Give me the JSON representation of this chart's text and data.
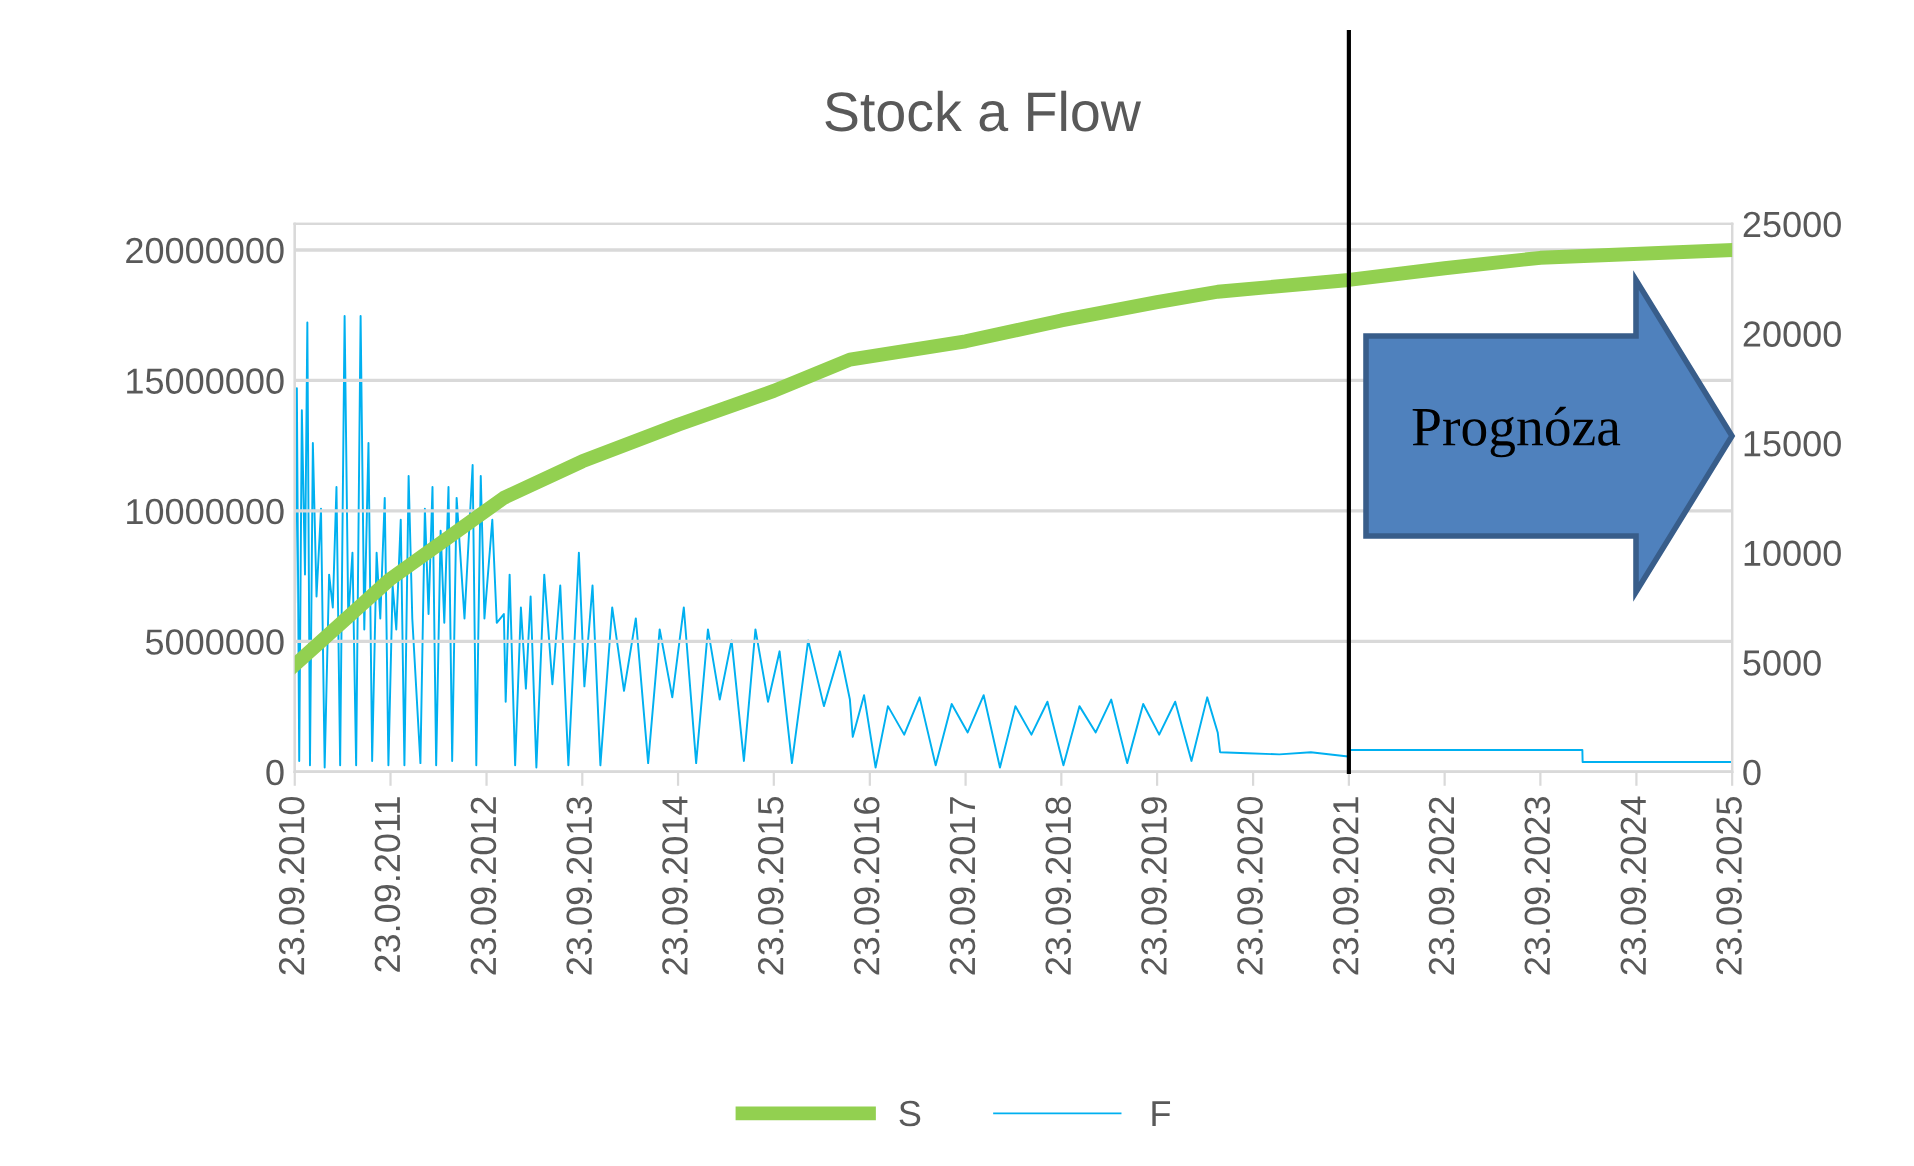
{
  "chart_data": {
    "type": "line",
    "title": "Stock a Flow",
    "annotations": [
      "Prognóza"
    ],
    "xlim": [
      "2010-09-23",
      "2025-09-23"
    ],
    "xticks": [
      {
        "value": "2010-09-23",
        "label": "23.09.2010"
      },
      {
        "value": "2011-09-23",
        "label": "23.09.2011"
      },
      {
        "value": "2012-09-23",
        "label": "23.09.2012"
      },
      {
        "value": "2013-09-23",
        "label": "23.09.2013"
      },
      {
        "value": "2014-09-23",
        "label": "23.09.2014"
      },
      {
        "value": "2015-09-23",
        "label": "23.09.2015"
      },
      {
        "value": "2016-09-23",
        "label": "23.09.2016"
      },
      {
        "value": "2017-09-23",
        "label": "23.09.2017"
      },
      {
        "value": "2018-09-23",
        "label": "23.09.2018"
      },
      {
        "value": "2019-09-23",
        "label": "23.09.2019"
      },
      {
        "value": "2020-09-23",
        "label": "23.09.2020"
      },
      {
        "value": "2021-09-23",
        "label": "23.09.2021"
      },
      {
        "value": "2022-09-23",
        "label": "23.09.2022"
      },
      {
        "value": "2023-09-23",
        "label": "23.09.2023"
      },
      {
        "value": "2024-09-23",
        "label": "23.09.2024"
      },
      {
        "value": "2025-09-23",
        "label": "23.09.2025"
      }
    ],
    "ylim": [
      0,
      21000000
    ],
    "yticks": [
      0,
      5000000,
      10000000,
      15000000,
      20000000
    ],
    "y2lim": [
      0,
      25000
    ],
    "y2ticks": [
      0,
      5000,
      10000,
      15000,
      20000,
      25000
    ],
    "grid": "y",
    "legend": "bottom",
    "marker": "none",
    "ref_lines": [
      {
        "axis": "x",
        "value": "2021-09-23",
        "color": "#000000"
      }
    ],
    "series": [
      {
        "name": "S",
        "color": "#92d050",
        "x": [
          "2010-09-23",
          "2011-09-23",
          "2012-11-28",
          "2013-09-23",
          "2014-09-23",
          "2015-09-23",
          "2016-07-09",
          "2017-09-23",
          "2018-09-23",
          "2019-09-23",
          "2020-05-11",
          "2021-09-23",
          "2022-09-23",
          "2023-09-23",
          "2025-09-23"
        ],
        "values": [
          4100000,
          7400000,
          10500000,
          11900000,
          13300000,
          14600000,
          15800000,
          16500000,
          17300000,
          18000000,
          18400000,
          18850000,
          19300000,
          19700000,
          20000000
        ]
      },
      {
        "name": "F",
        "color": "#00b0f0",
        "axis": "y2",
        "x": [
          "2010-09-23",
          "2010-10-01",
          "2010-10-10",
          "2010-10-20",
          "2010-11-01",
          "2010-11-10",
          "2010-11-20",
          "2010-12-01",
          "2010-12-15",
          "2011-01-01",
          "2011-01-15",
          "2011-02-01",
          "2011-02-15",
          "2011-03-01",
          "2011-03-15",
          "2011-04-01",
          "2011-04-15",
          "2011-05-01",
          "2011-05-15",
          "2011-06-01",
          "2011-06-15",
          "2011-07-01",
          "2011-07-15",
          "2011-08-01",
          "2011-08-15",
          "2011-09-01",
          "2011-09-15",
          "2011-10-01",
          "2011-10-15",
          "2011-11-01",
          "2011-11-15",
          "2011-12-01",
          "2011-12-15",
          "2012-01-15",
          "2012-02-01",
          "2012-02-15",
          "2012-03-01",
          "2012-03-15",
          "2012-04-01",
          "2012-04-15",
          "2012-05-01",
          "2012-05-15",
          "2012-06-01",
          "2012-07-01",
          "2012-08-01",
          "2012-08-15",
          "2012-09-01",
          "2012-09-15",
          "2012-10-15",
          "2012-11-01",
          "2012-11-28",
          "2012-12-05",
          "2012-12-20",
          "2013-01-10",
          "2013-02-01",
          "2013-02-20",
          "2013-03-10",
          "2013-04-01",
          "2013-05-01",
          "2013-06-01",
          "2013-07-01",
          "2013-08-01",
          "2013-09-10",
          "2013-10-01",
          "2013-11-01",
          "2013-12-01",
          "2014-01-15",
          "2014-03-01",
          "2014-04-15",
          "2014-06-01",
          "2014-07-15",
          "2014-09-01",
          "2014-10-15",
          "2014-12-01",
          "2015-01-15",
          "2015-03-01",
          "2015-04-15",
          "2015-06-01",
          "2015-07-15",
          "2015-09-01",
          "2015-10-15",
          "2015-12-01",
          "2016-02-01",
          "2016-04-01",
          "2016-06-01",
          "2016-07-09",
          "2016-07-20",
          "2016-09-01",
          "2016-10-15",
          "2016-12-01",
          "2017-02-01",
          "2017-04-01",
          "2017-06-01",
          "2017-08-01",
          "2017-10-01",
          "2017-12-01",
          "2018-02-01",
          "2018-04-01",
          "2018-06-01",
          "2018-08-01",
          "2018-10-01",
          "2018-12-01",
          "2019-02-01",
          "2019-04-01",
          "2019-06-01",
          "2019-08-01",
          "2019-10-01",
          "2019-12-01",
          "2020-02-01",
          "2020-04-01",
          "2020-05-11",
          "2020-05-20",
          "2020-09-01",
          "2021-01-01",
          "2021-05-01",
          "2021-09-20",
          "2021-09-23",
          "2024-03-01",
          "2024-03-02",
          "2025-09-23"
        ],
        "values": [
          6000,
          17500,
          500,
          16500,
          9000,
          20500,
          300,
          15000,
          8000,
          12000,
          200,
          9000,
          7500,
          13000,
          300,
          20800,
          7000,
          10000,
          300,
          20800,
          6500,
          15000,
          500,
          10000,
          7000,
          12500,
          300,
          8500,
          6500,
          11500,
          300,
          13500,
          7000,
          400,
          12000,
          7200,
          13000,
          300,
          11000,
          6800,
          13000,
          500,
          12500,
          7000,
          14000,
          300,
          13500,
          7000,
          11500,
          6800,
          7200,
          3200,
          9000,
          300,
          7500,
          3800,
          8000,
          200,
          9000,
          4000,
          8500,
          300,
          10000,
          3900,
          8500,
          300,
          7500,
          3700,
          7000,
          400,
          6500,
          3400,
          7500,
          400,
          6500,
          3300,
          6000,
          500,
          6500,
          3200,
          5500,
          400,
          6000,
          3000,
          5500,
          3300,
          1600,
          3500,
          200,
          3000,
          1700,
          3400,
          300,
          3100,
          1800,
          3500,
          200,
          3000,
          1700,
          3200,
          300,
          3000,
          1800,
          3300,
          400,
          3100,
          1700,
          3200,
          500,
          3400,
          1800,
          900,
          850,
          800,
          900,
          700,
          1000,
          1000,
          450,
          450
        ]
      }
    ]
  }
}
